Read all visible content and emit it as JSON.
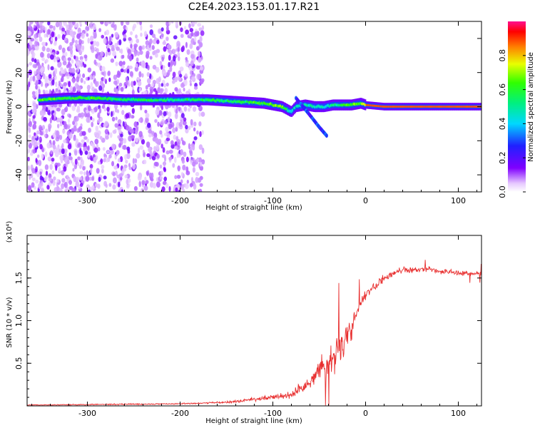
{
  "figure": {
    "title": "C2E4.2023.153.01.17.R21"
  },
  "chart_data": [
    {
      "type": "heatmap",
      "title": "C2E4.2023.153.01.17.R21",
      "xlabel": "Height of straight line (km)",
      "ylabel": "Frequency (Hz)",
      "xlim": [
        -365,
        125
      ],
      "ylim": [
        -50,
        50
      ],
      "xticks": [
        -300,
        -200,
        -100,
        0,
        100
      ],
      "yticks": [
        -40,
        -20,
        0,
        20,
        40
      ],
      "xtick_labels": [
        "-300",
        "-200",
        "-100",
        "0",
        "100"
      ],
      "ytick_labels": [
        "-40",
        "-20",
        "0",
        "20",
        "40"
      ],
      "ridge": {
        "description": "dominant spectral peak frequency vs height",
        "x": [
          -350,
          -320,
          -290,
          -260,
          -230,
          -200,
          -170,
          -140,
          -110,
          -90,
          -80,
          -75,
          -65,
          -55,
          -45,
          -35,
          -25,
          -15,
          -5,
          0,
          20,
          60,
          100,
          125
        ],
        "y": [
          4,
          5,
          5,
          4,
          4,
          4,
          4,
          3,
          2,
          0,
          -3,
          0,
          1,
          0,
          0,
          1,
          1,
          1,
          2,
          1,
          0,
          0,
          0,
          0
        ],
        "amplitude": [
          0.6,
          0.6,
          0.6,
          0.55,
          0.55,
          0.5,
          0.55,
          0.55,
          0.6,
          0.7,
          0.4,
          0.45,
          0.5,
          0.45,
          0.45,
          0.5,
          0.6,
          0.65,
          0.65,
          0.8,
          0.85,
          0.85,
          0.85,
          0.85
        ]
      },
      "side_branch": {
        "x": [
          -75,
          -60,
          -50,
          -42
        ],
        "y": [
          5,
          -5,
          -12,
          -17
        ]
      },
      "colorbar": {
        "label": "Normalized spectral amplitude",
        "range": [
          0,
          1
        ],
        "ticks": [
          0.0,
          0.2,
          0.4,
          0.6,
          0.8
        ],
        "tick_labels": [
          "0.0",
          "0.2",
          "0.4",
          "0.6",
          "0.8"
        ],
        "colormap": "rainbow (white-purple-blue-cyan-green-yellow-red-magenta)"
      }
    },
    {
      "type": "line",
      "xlabel": "Height of straight line (km)",
      "ylabel": "SNR (10 * v/v)",
      "scale_label": "(x10⁴)",
      "xlim": [
        -365,
        125
      ],
      "ylim": [
        0,
        2.0
      ],
      "xticks": [
        -300,
        -200,
        -100,
        0,
        100
      ],
      "yticks": [
        0.5,
        1.0,
        1.5
      ],
      "xtick_labels": [
        "-300",
        "-200",
        "-100",
        "0",
        "100"
      ],
      "ytick_labels": [
        "0.5",
        "1.0",
        "1.5"
      ],
      "series": [
        {
          "name": "SNR",
          "color": "#e83030",
          "x": [
            -365,
            -300,
            -250,
            -200,
            -180,
            -160,
            -140,
            -120,
            -100,
            -90,
            -80,
            -70,
            -60,
            -55,
            -50,
            -45,
            -40,
            -35,
            -30,
            -25,
            -20,
            -15,
            -10,
            -5,
            0,
            10,
            20,
            30,
            40,
            50,
            60,
            70,
            80,
            90,
            100,
            110,
            125
          ],
          "y": [
            0.01,
            0.015,
            0.02,
            0.025,
            0.03,
            0.04,
            0.05,
            0.08,
            0.1,
            0.12,
            0.12,
            0.2,
            0.25,
            0.35,
            0.45,
            0.5,
            0.45,
            0.55,
            0.65,
            0.75,
            0.85,
            0.9,
            1.1,
            1.2,
            1.3,
            1.4,
            1.5,
            1.55,
            1.6,
            1.6,
            1.6,
            1.6,
            1.58,
            1.57,
            1.56,
            1.55,
            1.55
          ],
          "spread": [
            0.005,
            0.01,
            0.01,
            0.01,
            0.01,
            0.015,
            0.02,
            0.03,
            0.05,
            0.05,
            0.06,
            0.1,
            0.12,
            0.15,
            0.2,
            0.25,
            0.3,
            0.3,
            0.35,
            0.3,
            0.25,
            0.2,
            0.15,
            0.1,
            0.08,
            0.08,
            0.06,
            0.05,
            0.05,
            0.05,
            0.05,
            0.05,
            0.04,
            0.04,
            0.04,
            0.04,
            0.04
          ]
        }
      ]
    }
  ]
}
